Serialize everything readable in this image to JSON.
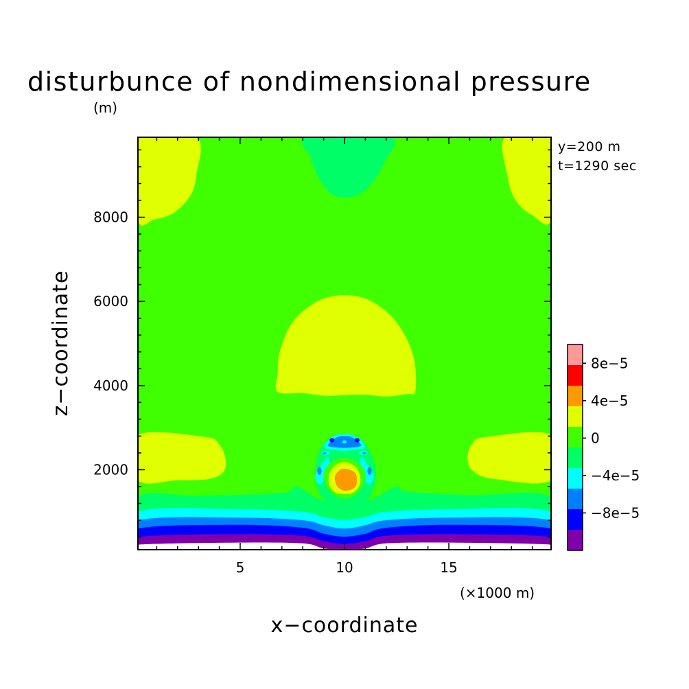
{
  "chart_data": {
    "type": "heatmap",
    "title": "disturbunce of nondimensional pressure",
    "units": "(m)",
    "info": [
      "y=200 m",
      "t=1290 sec"
    ],
    "xlabel": "x−coordinate",
    "ylabel": "z−coordinate",
    "x_units": "(×1000 m)",
    "xlim": [
      0.1,
      19.9
    ],
    "ylim": [
      100,
      9900
    ],
    "xticks": [
      {
        "value": 5,
        "label": "5"
      },
      {
        "value": 10,
        "label": "10"
      },
      {
        "value": 15,
        "label": "15"
      }
    ],
    "yticks": [
      {
        "value": 2000,
        "label": "2000"
      },
      {
        "value": 4000,
        "label": "4000"
      },
      {
        "value": 6000,
        "label": "6000"
      },
      {
        "value": 8000,
        "label": "8000"
      }
    ],
    "x_minor_step": 1,
    "y_minor_step": 400,
    "levels": [
      -0.00012,
      -0.0001,
      -8e-05,
      -6e-05,
      -4e-05,
      -2e-05,
      0,
      2e-05,
      4e-05,
      6e-05,
      8e-05,
      0.0001
    ],
    "colorbar": {
      "colors": [
        "#7f00aa",
        "#0000ff",
        "#0080ff",
        "#00ffff",
        "#00ff66",
        "#40ff00",
        "#e0ff00",
        "#ff9900",
        "#ff0000",
        "#ff9999"
      ],
      "labels": [
        {
          "level": -8e-05,
          "text": "−8e−5"
        },
        {
          "level": -4e-05,
          "text": "−4e−5"
        },
        {
          "level": 0,
          "text": "0"
        },
        {
          "level": 4e-05,
          "text": "4e−5"
        },
        {
          "level": 8e-05,
          "text": "8e−5"
        }
      ]
    },
    "background_color": "#40ff00",
    "regions": [
      {
        "name": "band-pos-low",
        "color": "#e0ff00",
        "points": [
          [
            0.1,
            1750
          ],
          [
            2,
            1750
          ],
          [
            3.5,
            1780
          ],
          [
            4.2,
            1950
          ],
          [
            4.3,
            2250
          ],
          [
            4,
            2600
          ],
          [
            3.3,
            2780
          ],
          [
            0.1,
            2820
          ]
        ]
      },
      {
        "name": "band-pos-right",
        "color": "#e0ff00",
        "points": [
          [
            19.9,
            2820
          ],
          [
            16.8,
            2780
          ],
          [
            16.1,
            2600
          ],
          [
            15.9,
            2250
          ],
          [
            16.2,
            1950
          ],
          [
            17.2,
            1780
          ],
          [
            19.9,
            1750
          ]
        ]
      },
      {
        "name": "band-pos-mid",
        "color": "#e0ff00",
        "points": [
          [
            6.8,
            3850
          ],
          [
            8,
            3820
          ],
          [
            9,
            3760
          ],
          [
            10,
            3770
          ],
          [
            11,
            3780
          ],
          [
            12,
            3740
          ],
          [
            13,
            3800
          ],
          [
            13.4,
            3880
          ],
          [
            13.3,
            4700
          ],
          [
            12.5,
            5500
          ],
          [
            11.3,
            6000
          ],
          [
            10,
            6150
          ],
          [
            8.7,
            6000
          ],
          [
            7.5,
            5500
          ],
          [
            6.9,
            4800
          ],
          [
            6.8,
            4300
          ]
        ]
      },
      {
        "name": "band-pos-topleft",
        "color": "#e0ff00",
        "points": [
          [
            0.1,
            9900
          ],
          [
            2.9,
            9900
          ],
          [
            2.9,
            9000
          ],
          [
            2.6,
            8500
          ],
          [
            1.8,
            8100
          ],
          [
            0.9,
            7950
          ],
          [
            0.1,
            7950
          ]
        ]
      },
      {
        "name": "band-pos-topright",
        "color": "#e0ff00",
        "points": [
          [
            19.9,
            9900
          ],
          [
            17.7,
            9900
          ],
          [
            17.8,
            9000
          ],
          [
            18.2,
            8400
          ],
          [
            19,
            8050
          ],
          [
            19.9,
            7950
          ]
        ]
      },
      {
        "name": "band-zero-top",
        "color": "#00ff66",
        "points": [
          [
            8.2,
            9900
          ],
          [
            12.2,
            9900
          ],
          [
            11.9,
            9300
          ],
          [
            11.3,
            8800
          ],
          [
            10.5,
            8500
          ],
          [
            9.5,
            8520
          ],
          [
            8.8,
            8900
          ],
          [
            8.4,
            9400
          ]
        ]
      },
      {
        "name": "band-zero-low",
        "color": "#00ff66",
        "points": [
          [
            0.1,
            100
          ],
          [
            19.9,
            100
          ],
          [
            19.9,
            1350
          ],
          [
            16,
            1400
          ],
          [
            13,
            1480
          ],
          [
            12.5,
            1600
          ],
          [
            11.3,
            1300
          ],
          [
            10,
            1150
          ],
          [
            8.8,
            1300
          ],
          [
            7.7,
            1600
          ],
          [
            7,
            1450
          ],
          [
            3,
            1380
          ],
          [
            0.1,
            1350
          ]
        ]
      },
      {
        "name": "band-n2",
        "color": "#00ffff",
        "points": [
          [
            0.1,
            100
          ],
          [
            19.9,
            100
          ],
          [
            19.9,
            1000
          ],
          [
            15,
            1060
          ],
          [
            12,
            1000
          ],
          [
            11,
            870
          ],
          [
            10,
            810
          ],
          [
            9,
            870
          ],
          [
            8,
            1000
          ],
          [
            5,
            1060
          ],
          [
            0.1,
            1000
          ]
        ]
      },
      {
        "name": "band-n4",
        "color": "#0080ff",
        "points": [
          [
            0.1,
            100
          ],
          [
            19.9,
            100
          ],
          [
            19.9,
            790
          ],
          [
            15,
            860
          ],
          [
            12,
            800
          ],
          [
            11,
            680
          ],
          [
            10,
            600
          ],
          [
            9,
            680
          ],
          [
            8,
            800
          ],
          [
            5,
            860
          ],
          [
            0.1,
            790
          ]
        ]
      },
      {
        "name": "band-n6",
        "color": "#0000ff",
        "points": [
          [
            0.1,
            100
          ],
          [
            19.9,
            100
          ],
          [
            19.9,
            600
          ],
          [
            15,
            690
          ],
          [
            12,
            620
          ],
          [
            11,
            480
          ],
          [
            10,
            410
          ],
          [
            9,
            480
          ],
          [
            8,
            620
          ],
          [
            5,
            690
          ],
          [
            0.1,
            600
          ]
        ]
      },
      {
        "name": "band-n8",
        "color": "#7f00aa",
        "points": [
          [
            0.1,
            100
          ],
          [
            19.9,
            100
          ],
          [
            19.9,
            400
          ],
          [
            15,
            470
          ],
          [
            12,
            430
          ],
          [
            11,
            300
          ],
          [
            10,
            240
          ],
          [
            9,
            300
          ],
          [
            8,
            430
          ],
          [
            5,
            470
          ],
          [
            0.1,
            400
          ]
        ]
      },
      {
        "name": "band-undefined",
        "color": "#ffffff",
        "points": [
          [
            0.1,
            100
          ],
          [
            19.9,
            100
          ],
          [
            19.9,
            220
          ],
          [
            15,
            270
          ],
          [
            12,
            250
          ],
          [
            11,
            130
          ],
          [
            10,
            100
          ],
          [
            9,
            130
          ],
          [
            8,
            250
          ],
          [
            5,
            270
          ],
          [
            0.1,
            220
          ]
        ]
      },
      {
        "name": "bubble-zero",
        "color": "#00ff66",
        "points": [
          [
            8.7,
            1550
          ],
          [
            8.6,
            2000
          ],
          [
            8.8,
            2450
          ],
          [
            9.3,
            2750
          ],
          [
            10,
            2850
          ],
          [
            10.7,
            2750
          ],
          [
            11.2,
            2450
          ],
          [
            11.5,
            2000
          ],
          [
            11.4,
            1550
          ],
          [
            11,
            1250
          ],
          [
            10,
            1150
          ],
          [
            9.1,
            1250
          ]
        ]
      },
      {
        "name": "bubble-cyan-top",
        "color": "#00ffff",
        "points": [
          [
            9,
            2540
          ],
          [
            9.4,
            2780
          ],
          [
            10,
            2850
          ],
          [
            10.6,
            2780
          ],
          [
            11,
            2540
          ],
          [
            10.6,
            2480
          ],
          [
            10,
            2450
          ],
          [
            9.4,
            2480
          ]
        ]
      },
      {
        "name": "bubble-blue-top",
        "color": "#0080ff",
        "points": [
          [
            9.2,
            2580
          ],
          [
            9.6,
            2760
          ],
          [
            10,
            2800
          ],
          [
            10.4,
            2760
          ],
          [
            10.8,
            2580
          ],
          [
            10.4,
            2530
          ],
          [
            10,
            2520
          ],
          [
            9.6,
            2530
          ]
        ]
      },
      {
        "name": "bubble-cyan-left",
        "color": "#00ffff",
        "points": [
          [
            8.6,
            1850
          ],
          [
            8.9,
            2120
          ],
          [
            9.2,
            2300
          ],
          [
            9.3,
            2050
          ],
          [
            9.1,
            1800
          ],
          [
            8.8,
            1650
          ]
        ]
      },
      {
        "name": "bubble-cyan-right",
        "color": "#00ffff",
        "points": [
          [
            11.4,
            1850
          ],
          [
            11.1,
            2120
          ],
          [
            10.8,
            2300
          ],
          [
            10.7,
            2050
          ],
          [
            10.9,
            1800
          ],
          [
            11.2,
            1650
          ]
        ]
      },
      {
        "name": "bubble-pos",
        "color": "#40ff00",
        "points": [
          [
            9.1,
            1650
          ],
          [
            9,
            1900
          ],
          [
            9.3,
            2150
          ],
          [
            10,
            2280
          ],
          [
            10.7,
            2150
          ],
          [
            11,
            1900
          ],
          [
            10.9,
            1650
          ],
          [
            10.5,
            1400
          ],
          [
            10,
            1320
          ],
          [
            9.5,
            1400
          ]
        ]
      },
      {
        "name": "bubble-pos2",
        "color": "#e0ff00",
        "points": [
          [
            9.3,
            1600
          ],
          [
            9.25,
            1850
          ],
          [
            9.5,
            2080
          ],
          [
            10,
            2180
          ],
          [
            10.5,
            2080
          ],
          [
            10.75,
            1850
          ],
          [
            10.7,
            1600
          ],
          [
            10.4,
            1450
          ],
          [
            10,
            1420
          ],
          [
            9.6,
            1450
          ]
        ]
      },
      {
        "name": "bubble-core",
        "color": "#ff9900",
        "points": [
          [
            9.6,
            1650
          ],
          [
            9.55,
            1850
          ],
          [
            9.8,
            2000
          ],
          [
            10.1,
            2020
          ],
          [
            10.5,
            1930
          ],
          [
            10.6,
            1750
          ],
          [
            10.5,
            1580
          ],
          [
            10.1,
            1500
          ],
          [
            9.8,
            1540
          ]
        ]
      }
    ],
    "blobs": [
      {
        "name": "blob-blue-left",
        "color": "#0000ff",
        "cx": 9.4,
        "cy": 2700,
        "rx": 0.12,
        "ry": 50
      },
      {
        "name": "blob-blue-right",
        "color": "#0000ff",
        "cx": 10.6,
        "cy": 2700,
        "rx": 0.12,
        "ry": 50
      },
      {
        "name": "blob-cyan-center",
        "color": "#00ffff",
        "cx": 10,
        "cy": 2660,
        "rx": 0.1,
        "ry": 40
      },
      {
        "name": "blob-blue-midleft",
        "color": "#0080ff",
        "cx": 8.8,
        "cy": 1970,
        "rx": 0.1,
        "ry": 90
      },
      {
        "name": "blob-blue-midright",
        "color": "#0080ff",
        "cx": 11.2,
        "cy": 1970,
        "rx": 0.1,
        "ry": 90
      },
      {
        "name": "blob-cyan-upper-left",
        "color": "#00ffff",
        "cx": 9.1,
        "cy": 2400,
        "rx": 0.2,
        "ry": 50
      },
      {
        "name": "blob-cyan-upper-right",
        "color": "#00ffff",
        "cx": 10.9,
        "cy": 2400,
        "rx": 0.2,
        "ry": 50
      },
      {
        "name": "blob-blue-upper-left",
        "color": "#0080ff",
        "cx": 9.05,
        "cy": 2390,
        "rx": 0.08,
        "ry": 25
      },
      {
        "name": "blob-blue-upper-right",
        "color": "#0080ff",
        "cx": 10.95,
        "cy": 2390,
        "rx": 0.08,
        "ry": 25
      }
    ]
  }
}
